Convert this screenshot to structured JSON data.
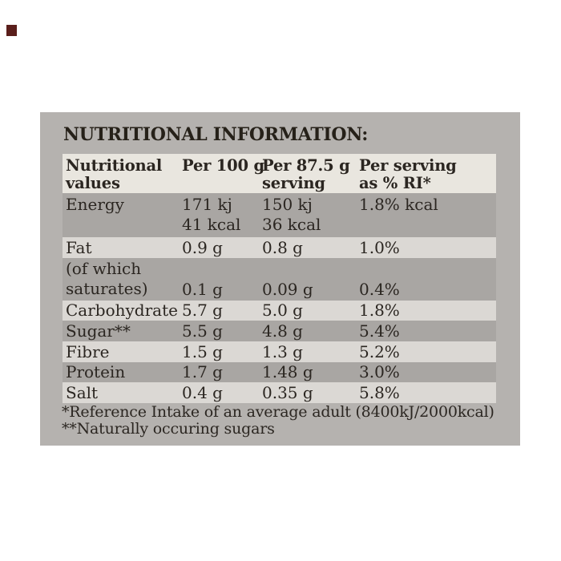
{
  "brand_mark": {
    "color": "#5a1e1b"
  },
  "label": {
    "background": "#b5b2af",
    "row_colors": {
      "header": "#e9e6df",
      "dark": "#a9a6a3",
      "light": "#dbd8d4"
    },
    "text_color": "#2b2621",
    "title": "NUTRITIONAL INFORMATION:",
    "table": {
      "headers": {
        "col1": [
          "Nutritional",
          "values"
        ],
        "col2": [
          "Per 100 g"
        ],
        "col3": [
          "Per 87.5 g",
          "serving"
        ],
        "col4": [
          "Per serving",
          "as % RI*"
        ]
      },
      "rows": [
        {
          "name": [
            "Energy"
          ],
          "per100g": [
            "171 kj",
            "41 kcal"
          ],
          "per_serving": [
            "150 kj",
            "36 kcal"
          ],
          "percent_ri": "1.8% kcal"
        },
        {
          "name": [
            "Fat"
          ],
          "per100g": [
            "0.9 g"
          ],
          "per_serving": [
            "0.8 g"
          ],
          "percent_ri": "1.0%"
        },
        {
          "name": [
            "(of which",
            "saturates)"
          ],
          "per100g": [
            "0.1 g"
          ],
          "per_serving": [
            "0.09 g"
          ],
          "percent_ri": "0.4%"
        },
        {
          "name": [
            "Carbohydrate"
          ],
          "per100g": [
            "5.7 g"
          ],
          "per_serving": [
            "5.0 g"
          ],
          "percent_ri": "1.8%"
        },
        {
          "name": [
            "Sugar**"
          ],
          "per100g": [
            "5.5 g"
          ],
          "per_serving": [
            "4.8 g"
          ],
          "percent_ri": "5.4%"
        },
        {
          "name": [
            "Fibre"
          ],
          "per100g": [
            "1.5 g"
          ],
          "per_serving": [
            "1.3 g"
          ],
          "percent_ri": "5.2%"
        },
        {
          "name": [
            "Protein"
          ],
          "per100g": [
            "1.7 g"
          ],
          "per_serving": [
            "1.48 g"
          ],
          "percent_ri": "3.0%"
        },
        {
          "name": [
            "Salt"
          ],
          "per100g": [
            "0.4 g"
          ],
          "per_serving": [
            "0.35 g"
          ],
          "percent_ri": "5.8%"
        }
      ]
    },
    "footnotes": [
      "*Reference Intake of an average adult (8400kJ/2000kcal)",
      "**Naturally occuring sugars"
    ]
  }
}
